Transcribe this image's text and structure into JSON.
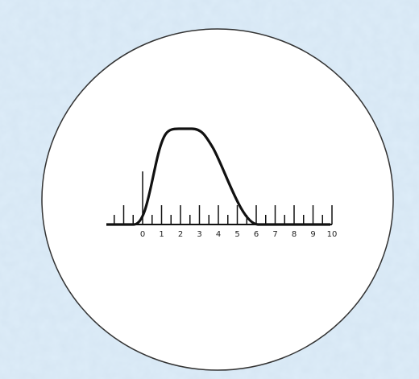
{
  "axis": {
    "labels": [
      0,
      1,
      2,
      3,
      4,
      5,
      6,
      7,
      8,
      9,
      10
    ]
  }
}
